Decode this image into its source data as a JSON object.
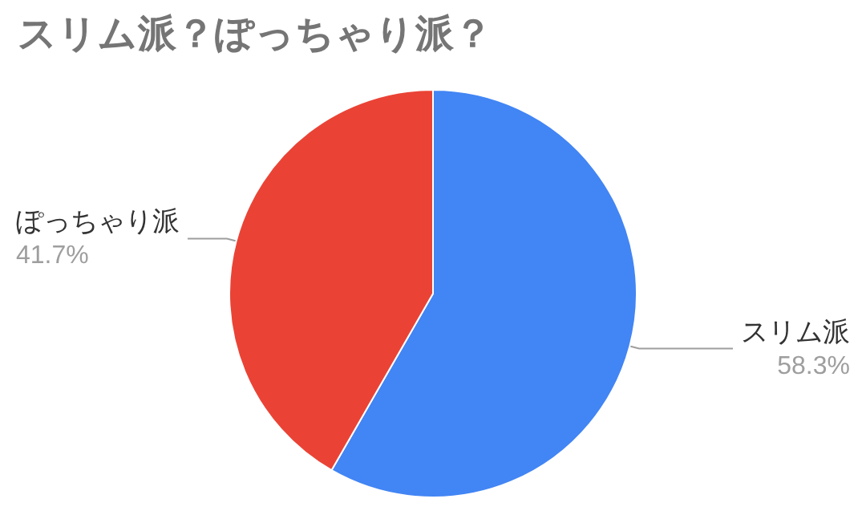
{
  "chart_data": {
    "type": "pie",
    "title": "スリム派？ぽっちゃり派？",
    "categories": [
      "スリム派",
      "ぽっちゃり派"
    ],
    "values": [
      58.3,
      41.7
    ],
    "colors": [
      "#4285f4",
      "#ea4335"
    ],
    "value_labels": [
      "58.3%",
      "41.7%"
    ],
    "legend": false
  }
}
